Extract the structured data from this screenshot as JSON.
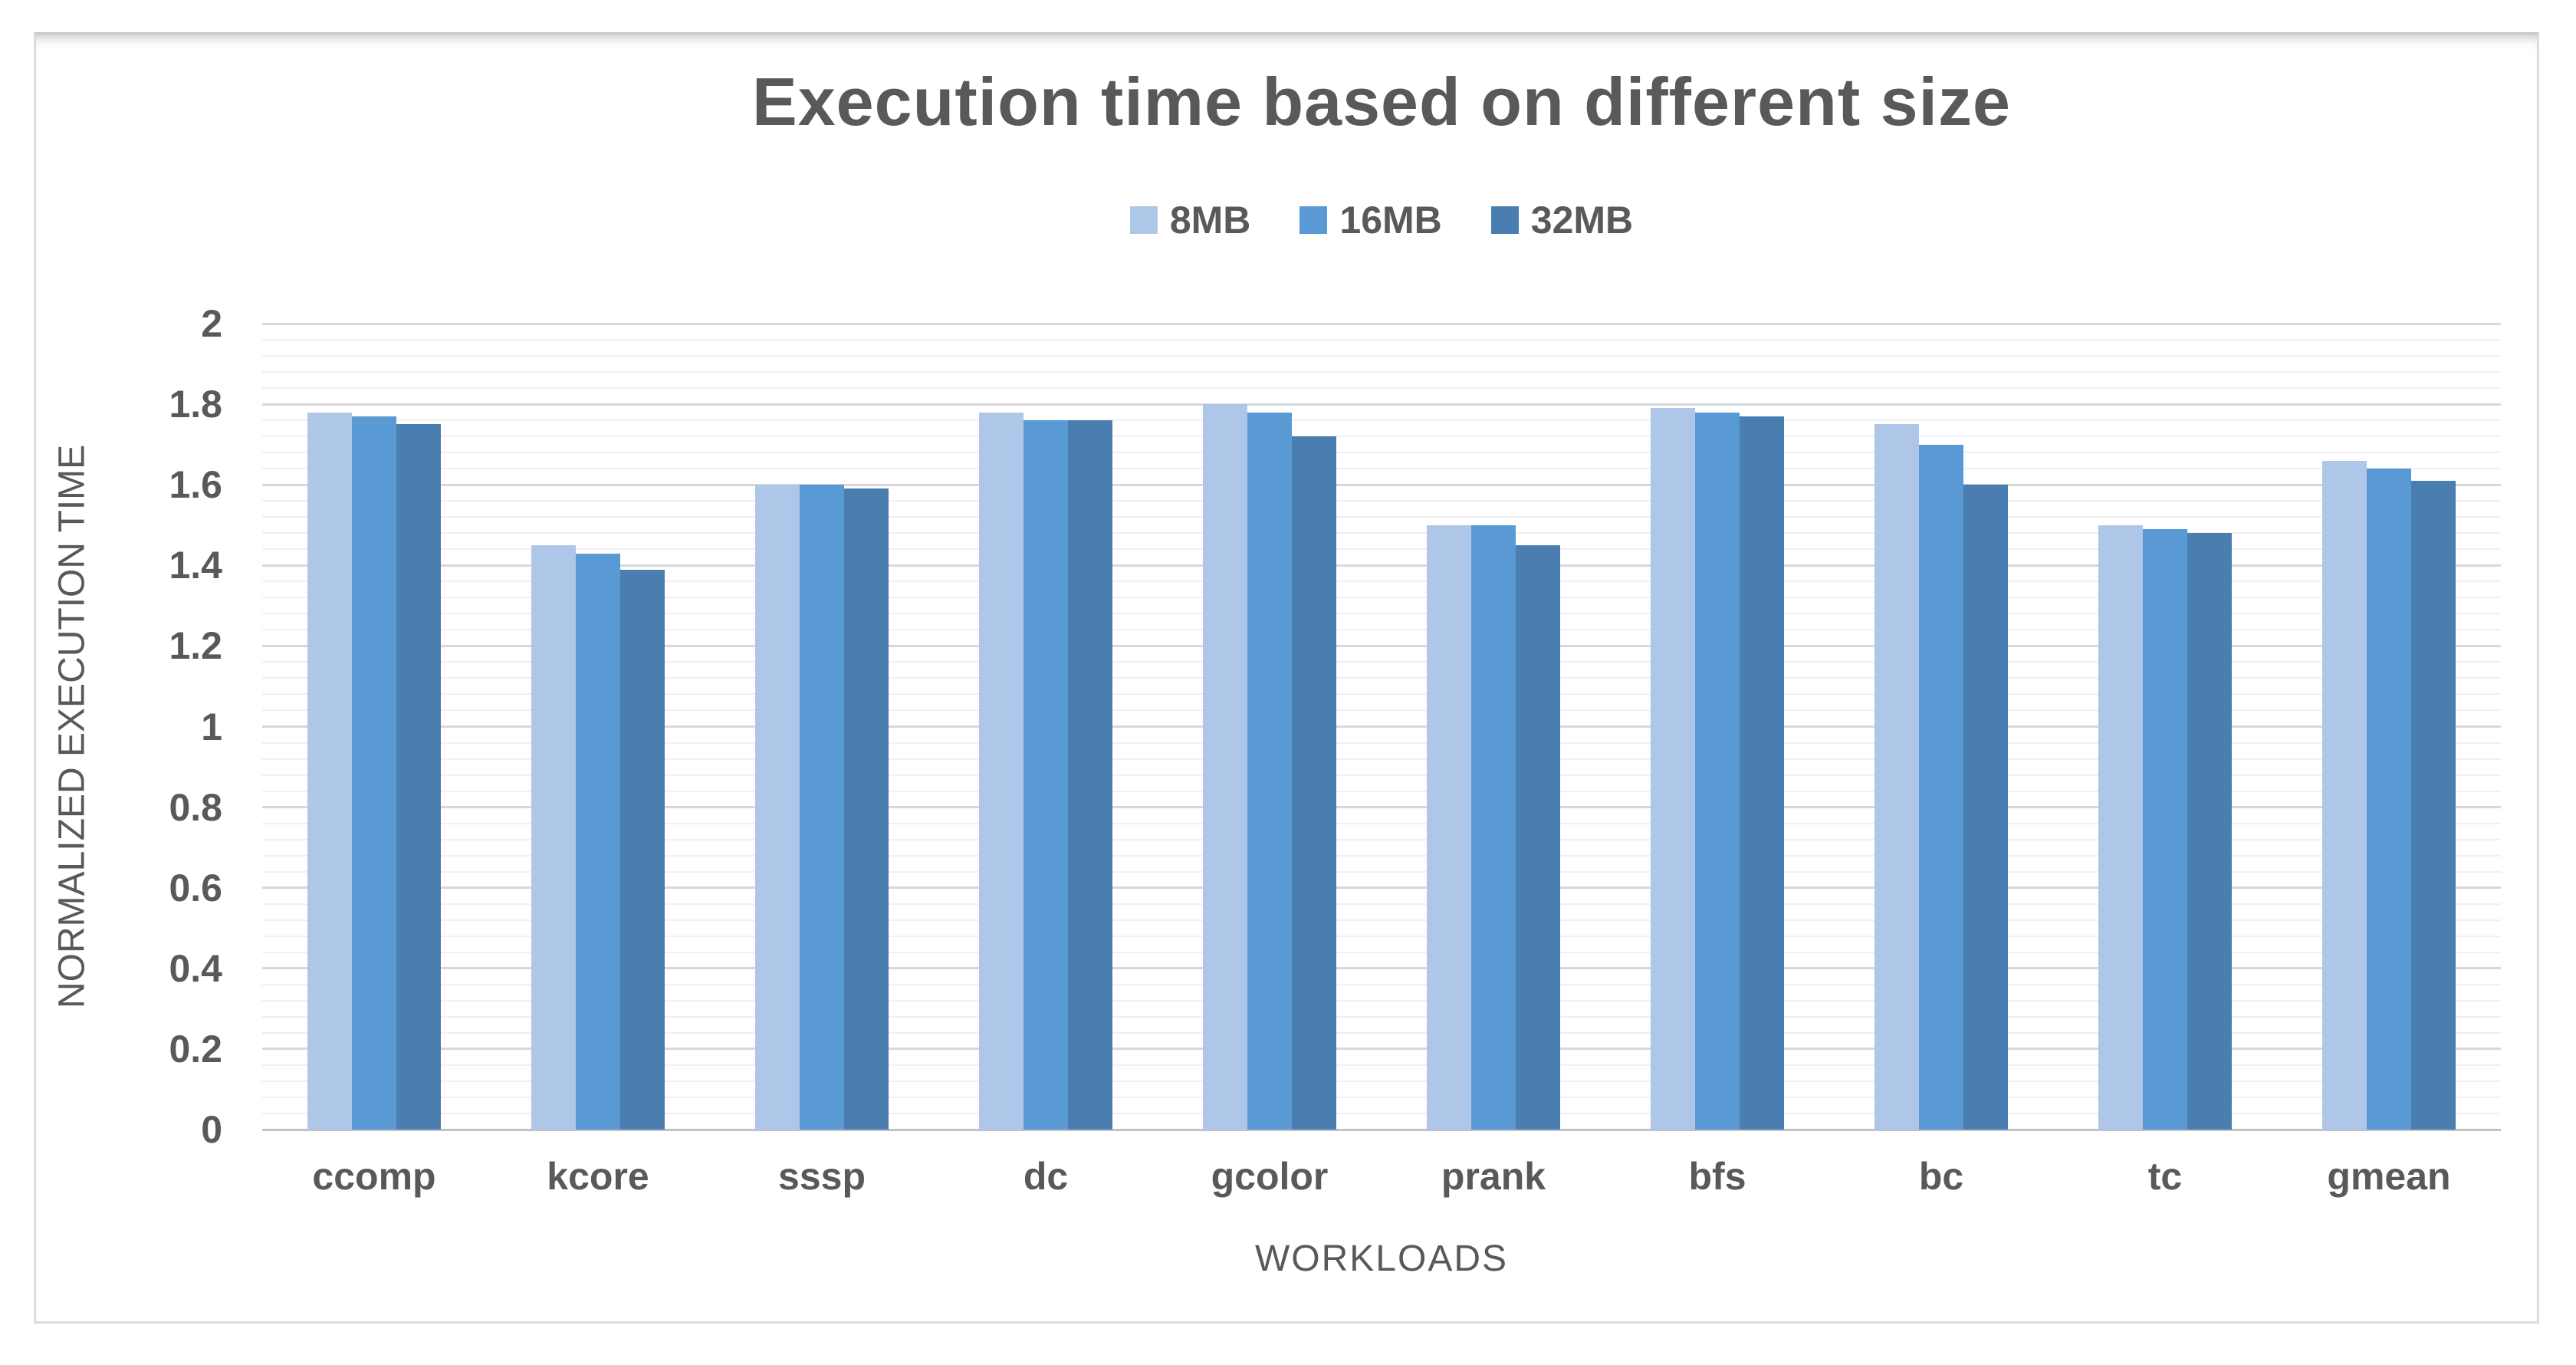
{
  "chart_data": {
    "type": "bar",
    "title": "Execution time based on different size",
    "xlabel": "WORKLOADS",
    "ylabel": "NORMALIZED EXECUTION TIME",
    "categories": [
      "ccomp",
      "kcore",
      "sssp",
      "dc",
      "gcolor",
      "prank",
      "bfs",
      "bc",
      "tc",
      "gmean"
    ],
    "series": [
      {
        "name": "8MB",
        "color": "#aec6e8",
        "values": [
          1.78,
          1.45,
          1.6,
          1.78,
          1.8,
          1.5,
          1.79,
          1.75,
          1.5,
          1.66
        ]
      },
      {
        "name": "16MB",
        "color": "#5999d4",
        "values": [
          1.77,
          1.43,
          1.6,
          1.76,
          1.78,
          1.5,
          1.78,
          1.7,
          1.49,
          1.64
        ]
      },
      {
        "name": "32MB",
        "color": "#4a7eb0",
        "values": [
          1.75,
          1.39,
          1.59,
          1.76,
          1.72,
          1.45,
          1.77,
          1.6,
          1.48,
          1.61
        ]
      }
    ],
    "ylim": [
      0,
      2
    ],
    "y_major_unit": 0.2,
    "y_minor_unit": 0.04,
    "y_tick_labels": [
      "0",
      "0.2",
      "0.4",
      "0.6",
      "0.8",
      "1",
      "1.2",
      "1.4",
      "1.6",
      "1.8",
      "2"
    ],
    "grid": "major-and-minor-horizontal",
    "legend_position": "top-center",
    "colors": {
      "text": "#595959",
      "gridline_major": "#d8d8d8",
      "gridline_minor": "#f0f0f0",
      "axis_line": "#c2c2c2",
      "frame_border": "#dcdcdc",
      "background": "#ffffff"
    }
  }
}
